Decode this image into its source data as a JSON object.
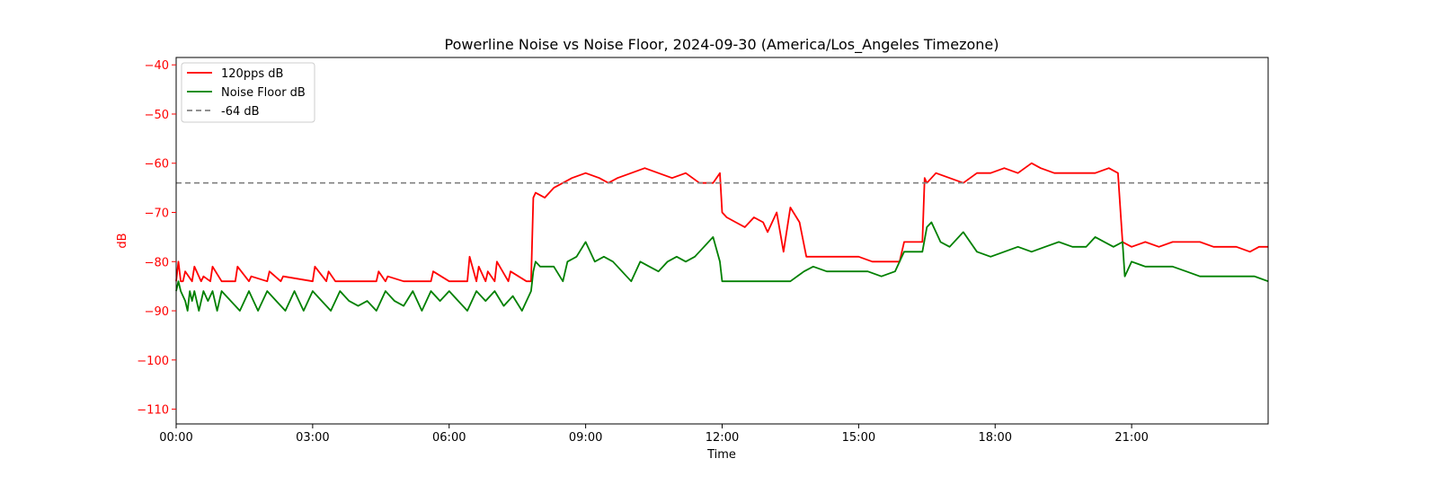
{
  "chart_data": {
    "type": "line",
    "title": "Powerline Noise vs Noise Floor, 2024-09-30 (America/Los_Angeles Timezone)",
    "xlabel": "Time",
    "ylabel": "dB",
    "x_unit": "hours",
    "xlim": [
      0,
      24
    ],
    "ylim": [
      -113,
      -38.5
    ],
    "x_ticks": [
      {
        "value": 0,
        "label": "00:00"
      },
      {
        "value": 3,
        "label": "03:00"
      },
      {
        "value": 6,
        "label": "06:00"
      },
      {
        "value": 9,
        "label": "09:00"
      },
      {
        "value": 12,
        "label": "12:00"
      },
      {
        "value": 15,
        "label": "15:00"
      },
      {
        "value": 18,
        "label": "18:00"
      },
      {
        "value": 21,
        "label": "21:00"
      }
    ],
    "y_ticks": [
      {
        "value": -40,
        "label": "−40"
      },
      {
        "value": -50,
        "label": "−50"
      },
      {
        "value": -60,
        "label": "−60"
      },
      {
        "value": -70,
        "label": "−70"
      },
      {
        "value": -80,
        "label": "−80"
      },
      {
        "value": -90,
        "label": "−90"
      },
      {
        "value": -100,
        "label": "−100"
      },
      {
        "value": -110,
        "label": "−110"
      }
    ],
    "y_axis_color": "#ff0000",
    "grid": false,
    "legend_position": "top-left",
    "series": [
      {
        "name": "120pps dB",
        "color": "#ff0000",
        "style": "solid",
        "x": [
          0,
          0.05,
          0.1,
          0.15,
          0.2,
          0.35,
          0.4,
          0.55,
          0.6,
          0.75,
          0.8,
          1.0,
          1.3,
          1.35,
          1.6,
          1.65,
          2.0,
          2.05,
          2.3,
          2.35,
          3.0,
          3.05,
          3.3,
          3.35,
          3.5,
          3.55,
          4.4,
          4.45,
          4.6,
          4.65,
          5.0,
          5.6,
          5.65,
          6.0,
          6.4,
          6.45,
          6.6,
          6.65,
          6.8,
          6.85,
          7.0,
          7.05,
          7.3,
          7.35,
          7.7,
          7.8,
          7.85,
          7.9,
          8.1,
          8.3,
          8.5,
          8.7,
          9.0,
          9.3,
          9.5,
          9.7,
          10.0,
          10.3,
          10.6,
          10.9,
          11.2,
          11.5,
          11.8,
          11.95,
          12.0,
          12.1,
          12.3,
          12.5,
          12.7,
          12.9,
          13.0,
          13.2,
          13.35,
          13.5,
          13.7,
          13.85,
          14.0,
          14.2,
          14.5,
          14.8,
          15.0,
          15.3,
          15.6,
          15.9,
          16.0,
          16.2,
          16.4,
          16.45,
          16.5,
          16.7,
          17.0,
          17.3,
          17.6,
          17.9,
          18.2,
          18.5,
          18.8,
          19.0,
          19.3,
          19.6,
          19.9,
          20.2,
          20.5,
          20.7,
          20.8,
          21.0,
          21.3,
          21.6,
          21.9,
          22.2,
          22.5,
          22.8,
          23.0,
          23.3,
          23.6,
          23.8,
          24.0
        ],
        "values": [
          -84,
          -80,
          -84,
          -84,
          -82,
          -84,
          -81,
          -84,
          -83,
          -84,
          -81,
          -84,
          -84,
          -81,
          -84,
          -83,
          -84,
          -82,
          -84,
          -83,
          -84,
          -81,
          -84,
          -82,
          -84,
          -84,
          -84,
          -82,
          -84,
          -83,
          -84,
          -84,
          -82,
          -84,
          -84,
          -79,
          -84,
          -81,
          -84,
          -82,
          -84,
          -80,
          -84,
          -82,
          -84,
          -84,
          -67,
          -66,
          -67,
          -65,
          -64,
          -63,
          -62,
          -63,
          -64,
          -63,
          -62,
          -61,
          -62,
          -63,
          -62,
          -64,
          -64,
          -62,
          -70,
          -71,
          -72,
          -73,
          -71,
          -72,
          -74,
          -70,
          -78,
          -69,
          -72,
          -79,
          -79,
          -79,
          -79,
          -79,
          -79,
          -80,
          -80,
          -80,
          -76,
          -76,
          -76,
          -63,
          -64,
          -62,
          -63,
          -64,
          -62,
          -62,
          -61,
          -62,
          -60,
          -61,
          -62,
          -62,
          -62,
          -62,
          -61,
          -62,
          -76,
          -77,
          -76,
          -77,
          -76,
          -76,
          -76,
          -77,
          -77,
          -77,
          -78,
          -77,
          -77
        ]
      },
      {
        "name": "Noise Floor dB",
        "color": "#008000",
        "style": "solid",
        "x": [
          0,
          0.05,
          0.1,
          0.2,
          0.25,
          0.3,
          0.35,
          0.4,
          0.5,
          0.6,
          0.7,
          0.8,
          0.9,
          1.0,
          1.2,
          1.4,
          1.6,
          1.8,
          2.0,
          2.2,
          2.4,
          2.6,
          2.8,
          3.0,
          3.2,
          3.4,
          3.6,
          3.8,
          4.0,
          4.2,
          4.4,
          4.6,
          4.8,
          5.0,
          5.2,
          5.4,
          5.6,
          5.8,
          6.0,
          6.2,
          6.4,
          6.6,
          6.8,
          7.0,
          7.2,
          7.4,
          7.6,
          7.8,
          7.85,
          7.9,
          8.0,
          8.3,
          8.5,
          8.6,
          8.8,
          9.0,
          9.2,
          9.4,
          9.6,
          9.8,
          10.0,
          10.2,
          10.4,
          10.6,
          10.8,
          11.0,
          11.2,
          11.4,
          11.6,
          11.8,
          11.95,
          12.0,
          12.3,
          12.6,
          12.9,
          13.2,
          13.5,
          13.8,
          14.0,
          14.3,
          14.6,
          14.9,
          15.2,
          15.5,
          15.8,
          16.0,
          16.2,
          16.4,
          16.5,
          16.6,
          16.8,
          17.0,
          17.3,
          17.6,
          17.9,
          18.2,
          18.5,
          18.8,
          19.1,
          19.4,
          19.7,
          20.0,
          20.2,
          20.4,
          20.6,
          20.8,
          20.85,
          21.0,
          21.3,
          21.6,
          21.9,
          22.2,
          22.5,
          22.8,
          23.1,
          23.4,
          23.7,
          24.0
        ],
        "values": [
          -86,
          -84,
          -86,
          -88,
          -90,
          -86,
          -88,
          -86,
          -90,
          -86,
          -88,
          -86,
          -90,
          -86,
          -88,
          -90,
          -86,
          -90,
          -86,
          -88,
          -90,
          -86,
          -90,
          -86,
          -88,
          -90,
          -86,
          -88,
          -89,
          -88,
          -90,
          -86,
          -88,
          -89,
          -86,
          -90,
          -86,
          -88,
          -86,
          -88,
          -90,
          -86,
          -88,
          -86,
          -89,
          -87,
          -90,
          -86,
          -82,
          -80,
          -81,
          -81,
          -84,
          -80,
          -79,
          -76,
          -80,
          -79,
          -80,
          -82,
          -84,
          -80,
          -81,
          -82,
          -80,
          -79,
          -80,
          -79,
          -77,
          -75,
          -80,
          -84,
          -84,
          -84,
          -84,
          -84,
          -84,
          -82,
          -81,
          -82,
          -82,
          -82,
          -82,
          -83,
          -82,
          -78,
          -78,
          -78,
          -73,
          -72,
          -76,
          -77,
          -74,
          -78,
          -79,
          -78,
          -77,
          -78,
          -77,
          -76,
          -77,
          -77,
          -75,
          -76,
          -77,
          -76,
          -83,
          -80,
          -81,
          -81,
          -81,
          -82,
          -83,
          -83,
          -83,
          -83,
          -83,
          -84
        ]
      },
      {
        "name": "-64 dB",
        "color": "#808080",
        "style": "dashed",
        "x": [
          0,
          24
        ],
        "values": [
          -64,
          -64
        ]
      }
    ]
  }
}
